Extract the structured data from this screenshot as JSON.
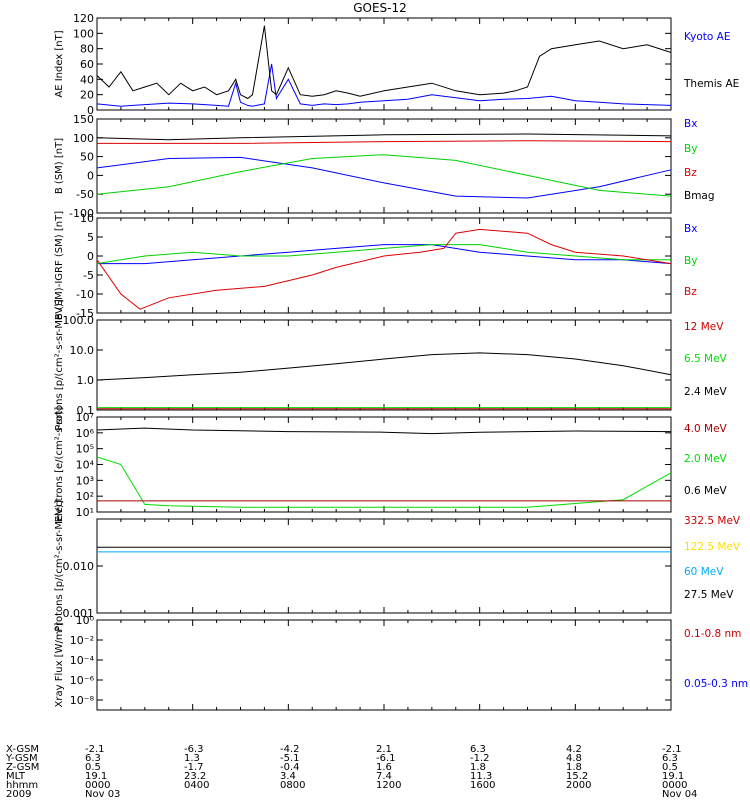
{
  "title": "GOES-12",
  "chart_data": [
    {
      "type": "line",
      "panel": "ae_index",
      "ylabel": "AE Index [nT]",
      "yticks": [
        "0",
        "20",
        "40",
        "60",
        "80",
        "100",
        "120"
      ],
      "ylim": [
        0,
        120
      ],
      "legend": [
        {
          "name": "Kyoto AE",
          "color": "#0000ff"
        },
        {
          "name": "Themis AE",
          "color": "#000000"
        }
      ],
      "series": [
        {
          "name": "Kyoto AE",
          "color": "#0000ff",
          "x": [
            0,
            1,
            2,
            3,
            4,
            5,
            5.5,
            5.8,
            6,
            6.3,
            6.5,
            7,
            7.3,
            7.5,
            8,
            8.5,
            9,
            9.5,
            10,
            10.5,
            11,
            12,
            13,
            14,
            15,
            16,
            17,
            18,
            19,
            20,
            21,
            22,
            23,
            24
          ],
          "y": [
            8,
            5,
            7,
            9,
            8,
            6,
            5,
            35,
            10,
            6,
            5,
            8,
            60,
            15,
            40,
            8,
            6,
            8,
            7,
            8,
            10,
            12,
            14,
            20,
            16,
            12,
            14,
            15,
            18,
            12,
            10,
            8,
            7,
            6
          ]
        },
        {
          "name": "Themis AE",
          "color": "#000000",
          "x": [
            0,
            0.5,
            1,
            1.5,
            2,
            2.5,
            3,
            3.5,
            4,
            4.5,
            5,
            5.5,
            5.8,
            6,
            6.3,
            6.5,
            7,
            7.3,
            7.5,
            8,
            8.5,
            9,
            9.5,
            10,
            10.5,
            11,
            12,
            13,
            14,
            15,
            16,
            17,
            17.5,
            18,
            18.5,
            19,
            20,
            21,
            22,
            23,
            24
          ],
          "y": [
            45,
            30,
            50,
            25,
            30,
            35,
            20,
            35,
            25,
            30,
            20,
            25,
            40,
            20,
            15,
            20,
            110,
            25,
            20,
            55,
            20,
            18,
            20,
            25,
            22,
            18,
            25,
            30,
            35,
            25,
            20,
            22,
            25,
            30,
            70,
            80,
            85,
            90,
            80,
            85,
            75
          ]
        }
      ]
    },
    {
      "type": "line",
      "panel": "b_sm",
      "ylabel": "B (SM) [nT]",
      "yticks": [
        "-100",
        "-50",
        "0",
        "50",
        "100",
        "150"
      ],
      "ylim": [
        -100,
        150
      ],
      "legend": [
        {
          "name": "Bx",
          "color": "#0000ff"
        },
        {
          "name": "By",
          "color": "#00d000"
        },
        {
          "name": "Bz",
          "color": "#dd0000"
        },
        {
          "name": "Bmag",
          "color": "#000000"
        }
      ],
      "series": [
        {
          "name": "Bx",
          "color": "#0000ff",
          "x": [
            0,
            3,
            6,
            9,
            12,
            15,
            18,
            21,
            24
          ],
          "y": [
            20,
            45,
            48,
            20,
            -20,
            -55,
            -60,
            -30,
            15
          ]
        },
        {
          "name": "By",
          "color": "#00d000",
          "x": [
            0,
            3,
            6,
            9,
            12,
            15,
            18,
            21,
            24
          ],
          "y": [
            -50,
            -30,
            10,
            45,
            55,
            40,
            0,
            -40,
            -55
          ]
        },
        {
          "name": "Bz",
          "color": "#dd0000",
          "x": [
            0,
            6,
            12,
            18,
            24
          ],
          "y": [
            85,
            85,
            90,
            92,
            90
          ]
        },
        {
          "name": "Bmag",
          "color": "#000000",
          "x": [
            0,
            3,
            6,
            12,
            18,
            24
          ],
          "y": [
            100,
            95,
            100,
            108,
            110,
            105
          ]
        }
      ]
    },
    {
      "type": "line",
      "panel": "b_minus_igrf",
      "ylabel": "B (SM)-IGRF (SM) [nT]",
      "yticks": [
        "-15",
        "-10",
        "-5",
        "0",
        "5",
        "10"
      ],
      "ylim": [
        -15,
        10
      ],
      "legend": [
        {
          "name": "Bx",
          "color": "#0000ff"
        },
        {
          "name": "By",
          "color": "#00d000"
        },
        {
          "name": "Bz",
          "color": "#dd0000"
        }
      ],
      "series": [
        {
          "name": "Bx",
          "color": "#0000ff",
          "x": [
            0,
            2,
            4,
            6,
            8,
            10,
            12,
            14,
            16,
            18,
            20,
            22,
            24
          ],
          "y": [
            -2,
            -2,
            -1,
            0,
            1,
            2,
            3,
            3,
            1,
            0,
            -1,
            -1,
            -2
          ]
        },
        {
          "name": "By",
          "color": "#00d000",
          "x": [
            0,
            2,
            4,
            6,
            8,
            10,
            12,
            14,
            16,
            18,
            20,
            22,
            24
          ],
          "y": [
            -2,
            0,
            1,
            0,
            0,
            1,
            2,
            3,
            3,
            1,
            0,
            -1,
            -1
          ]
        },
        {
          "name": "Bz",
          "color": "#dd0000",
          "x": [
            0,
            1,
            1.8,
            3,
            5,
            7,
            9,
            10,
            12,
            13.5,
            14.5,
            15,
            16,
            18,
            19,
            20,
            22,
            24
          ],
          "y": [
            -1,
            -10,
            -14,
            -11,
            -9,
            -8,
            -5,
            -3,
            0,
            1,
            2,
            6,
            7,
            6,
            3,
            1,
            0,
            -2
          ]
        }
      ]
    },
    {
      "type": "line",
      "panel": "protons_low",
      "ylabel": "Protons [p/(cm²-s-sr-MeV)]",
      "yscale": "log",
      "yticks": [
        "0.1",
        "1.0",
        "10.0",
        "100.0"
      ],
      "ylim": [
        0.1,
        100
      ],
      "legend": [
        {
          "name": "12 MeV",
          "color": "#cc0000"
        },
        {
          "name": "6.5 MeV",
          "color": "#00dd00"
        },
        {
          "name": "2.4 MeV",
          "color": "#000000"
        }
      ],
      "series": [
        {
          "name": "2.4 MeV",
          "color": "#000000",
          "x": [
            0,
            2,
            4,
            6,
            8,
            10,
            12,
            14,
            16,
            18,
            20,
            22,
            24
          ],
          "y": [
            1.0,
            1.2,
            1.5,
            1.8,
            2.5,
            3.5,
            5,
            7,
            8,
            7,
            5,
            3,
            1.5
          ]
        },
        {
          "name": "6.5 MeV",
          "color": "#00dd00",
          "x": [
            0,
            24
          ],
          "y": [
            0.12,
            0.12
          ]
        },
        {
          "name": "12 MeV",
          "color": "#cc0000",
          "x": [
            0,
            24
          ],
          "y": [
            0.11,
            0.11
          ]
        }
      ]
    },
    {
      "type": "line",
      "panel": "electrons",
      "ylabel": "Electrons [e/(cm²-s-sr)]",
      "yscale": "log",
      "yticks": [
        "10¹",
        "10²",
        "10³",
        "10⁴",
        "10⁵",
        "10⁶",
        "10⁷"
      ],
      "ylim": [
        10,
        10000000
      ],
      "legend": [
        {
          "name": "4.0 MeV",
          "color": "#aa0000"
        },
        {
          "name": "2.0 MeV",
          "color": "#00dd00"
        },
        {
          "name": "0.6 MeV",
          "color": "#000000"
        }
      ],
      "series": [
        {
          "name": "0.6 MeV",
          "color": "#000000",
          "x": [
            0,
            2,
            4,
            8,
            12,
            14,
            16,
            18,
            20,
            24
          ],
          "y": [
            1500000,
            2000000,
            1500000,
            1200000,
            1100000,
            900000,
            1100000,
            1200000,
            1300000,
            1200000
          ]
        },
        {
          "name": "2.0 MeV",
          "color": "#00dd00",
          "x": [
            0,
            1,
            2,
            3,
            6,
            12,
            18,
            22,
            24
          ],
          "y": [
            30000,
            10000,
            30,
            25,
            20,
            20,
            20,
            60,
            3000
          ]
        },
        {
          "name": "4.0 MeV",
          "color": "#aa0000",
          "x": [
            0,
            24
          ],
          "y": [
            50,
            50
          ]
        }
      ]
    },
    {
      "type": "line",
      "panel": "protons_high",
      "ylabel": "Protons [p/(cm²-s-sr-MeV)]",
      "yscale": "log",
      "yticks": [
        "0.001",
        "0.010"
      ],
      "ylim": [
        0.001,
        0.1
      ],
      "legend": [
        {
          "name": "332.5 MeV",
          "color": "#cc0000"
        },
        {
          "name": "122.5 MeV",
          "color": "#ffdd00"
        },
        {
          "name": "60 MeV",
          "color": "#00aaff"
        },
        {
          "name": "27.5 MeV",
          "color": "#000000"
        }
      ],
      "series": [
        {
          "name": "27.5 MeV",
          "color": "#000000",
          "x": [
            0,
            24
          ],
          "y": [
            0.025,
            0.025
          ]
        },
        {
          "name": "60 MeV",
          "color": "#00aaff",
          "x": [
            0,
            24
          ],
          "y": [
            0.02,
            0.02
          ]
        }
      ]
    },
    {
      "type": "line",
      "panel": "xray",
      "ylabel": "Xray Flux [W/m²]",
      "yscale": "log",
      "yticks": [
        "10⁻⁸",
        "10⁻⁶",
        "10⁻⁴",
        "10⁻²",
        "10⁰"
      ],
      "ylim": [
        1e-09,
        1
      ],
      "legend": [
        {
          "name": "0.1-0.8 nm",
          "color": "#cc0000"
        },
        {
          "name": "0.05-0.3 nm",
          "color": "#0000ff"
        }
      ],
      "series": []
    }
  ],
  "footer": {
    "rows": [
      {
        "label": "X-GSM",
        "values": [
          "-2.1",
          "-6.3",
          "-4.2",
          "2.1",
          "6.3",
          "4.2",
          "-2.1"
        ]
      },
      {
        "label": "Y-GSM",
        "values": [
          "6.3",
          "1.3",
          "-5.1",
          "-6.1",
          "-1.2",
          "4.8",
          "6.3"
        ]
      },
      {
        "label": "Z-GSM",
        "values": [
          "0.5",
          "-1.7",
          "-0.4",
          "1.6",
          "1.8",
          "1.8",
          "0.5"
        ]
      },
      {
        "label": "MLT",
        "values": [
          "19.1",
          "23.2",
          "3.4",
          "7.4",
          "11.3",
          "15.2",
          "19.1"
        ]
      },
      {
        "label": "hhmm",
        "values": [
          "0000",
          "0400",
          "0800",
          "1200",
          "1600",
          "2000",
          "0000"
        ]
      },
      {
        "label": "2009",
        "values": [
          "Nov 03",
          "",
          "",
          "",
          "",
          "",
          "Nov 04"
        ]
      }
    ]
  }
}
